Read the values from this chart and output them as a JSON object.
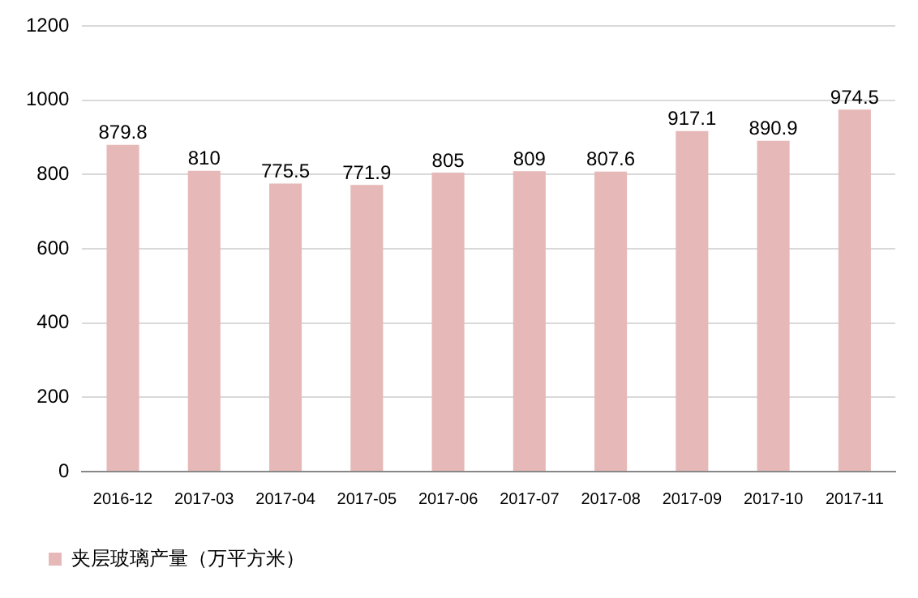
{
  "chart_data": {
    "type": "bar",
    "categories": [
      "2016-12",
      "2017-03",
      "2017-04",
      "2017-05",
      "2017-06",
      "2017-07",
      "2017-08",
      "2017-09",
      "2017-10",
      "2017-11"
    ],
    "series": [
      {
        "name": "夹层玻璃产量（万平方米）",
        "color": "#e6b9b8",
        "values": [
          879.8,
          810,
          775.5,
          771.9,
          805,
          809,
          807.6,
          917.1,
          890.9,
          974.5
        ]
      }
    ],
    "ylim": [
      0,
      1200
    ],
    "yticks": [
      0,
      200,
      400,
      600,
      800,
      1000,
      1200
    ],
    "grid": "y",
    "legend": "bottom left",
    "data_labels": true
  }
}
